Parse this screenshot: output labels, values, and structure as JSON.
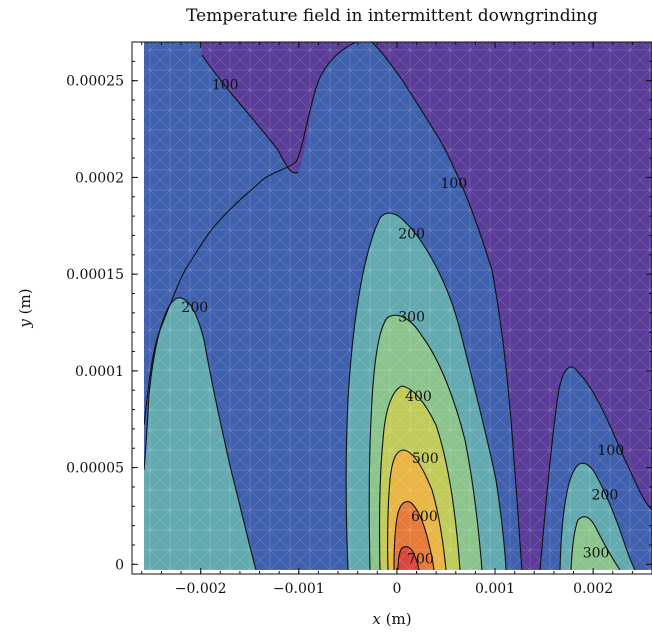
{
  "chart_data": {
    "type": "contour",
    "title": "Temperature field in intermittent downgrinding",
    "xlabel": "x (m)",
    "ylabel": "y (m)",
    "xlim": [
      -0.0027,
      0.0026
    ],
    "ylim": [
      -5e-06,
      0.00027
    ],
    "x_ticks": [
      {
        "value": -0.002,
        "label": "−0.002"
      },
      {
        "value": -0.001,
        "label": "−0.001"
      },
      {
        "value": 0,
        "label": "0"
      },
      {
        "value": 0.001,
        "label": "0.001"
      },
      {
        "value": 0.002,
        "label": "0.002"
      }
    ],
    "y_ticks": [
      {
        "value": 0,
        "label": "0"
      },
      {
        "value": 5e-05,
        "label": "0.00005"
      },
      {
        "value": 0.0001,
        "label": "0.0001"
      },
      {
        "value": 0.00015,
        "label": "0.00015"
      },
      {
        "value": 0.0002,
        "label": "0.0002"
      },
      {
        "value": 0.00025,
        "label": "0.00025"
      }
    ],
    "levels": [
      100,
      200,
      300,
      400,
      500,
      600,
      700
    ],
    "band_colors": [
      "#5a3d98",
      "#3f60ad",
      "#63aab0",
      "#8bc48c",
      "#c1cb5a",
      "#e9b545",
      "#e77a3a",
      "#d8463c"
    ],
    "contour_labels": [
      {
        "text": "100",
        "x": -0.00175,
        "y": 0.000248
      },
      {
        "text": "100",
        "x": 0.00058,
        "y": 0.000197
      },
      {
        "text": "200",
        "x": 0.00015,
        "y": 0.000171
      },
      {
        "text": "200",
        "x": -0.00206,
        "y": 0.000133
      },
      {
        "text": "300",
        "x": 0.00015,
        "y": 0.000128
      },
      {
        "text": "400",
        "x": 0.00022,
        "y": 8.7e-05
      },
      {
        "text": "500",
        "x": 0.00029,
        "y": 5.5e-05
      },
      {
        "text": "600",
        "x": 0.00028,
        "y": 2.5e-05
      },
      {
        "text": "700",
        "x": 0.00024,
        "y": 3e-06
      },
      {
        "text": "100",
        "x": 0.00218,
        "y": 5.9e-05
      },
      {
        "text": "200",
        "x": 0.00212,
        "y": 3.6e-05
      },
      {
        "text": "300",
        "x": 0.00203,
        "y": 6e-06
      }
    ]
  }
}
